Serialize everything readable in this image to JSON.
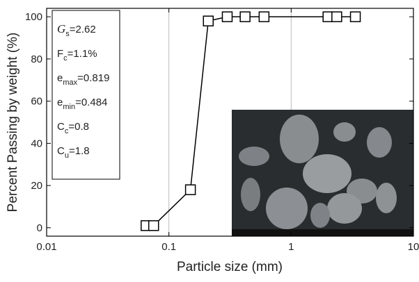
{
  "chart_data": {
    "type": "line",
    "x_label": "Particle size (mm)",
    "y_label": "Percent Passing by weight (%)",
    "x": [
      0.065,
      0.075,
      0.15,
      0.21,
      0.3,
      0.42,
      0.6,
      2.0,
      2.36,
      3.35
    ],
    "series": [
      {
        "color": "#000000",
        "values": [
          1,
          1,
          18,
          98,
          100,
          100,
          100,
          100,
          100,
          100
        ]
      }
    ],
    "xlog": true,
    "xlim": [
      0.01,
      10
    ],
    "xticks": [
      0.01,
      0.1,
      1,
      10
    ],
    "ylim": [
      -4,
      104
    ],
    "yticks": [
      0,
      20,
      40,
      60,
      80,
      100
    ],
    "grid": "x",
    "annotations": [
      {
        "main": "G",
        "sub": "s",
        "rest": "=2.62"
      },
      {
        "main": "F",
        "sub": "c",
        "rest": "=1.1%"
      },
      {
        "main": "e",
        "sub": "max",
        "rest": "=0.819"
      },
      {
        "main": "e",
        "sub": "min",
        "rest": "=0.484"
      },
      {
        "main": "C",
        "sub": "c",
        "rest": "=0.8"
      },
      {
        "main": "C",
        "sub": "u",
        "rest": "=1.8"
      }
    ]
  }
}
